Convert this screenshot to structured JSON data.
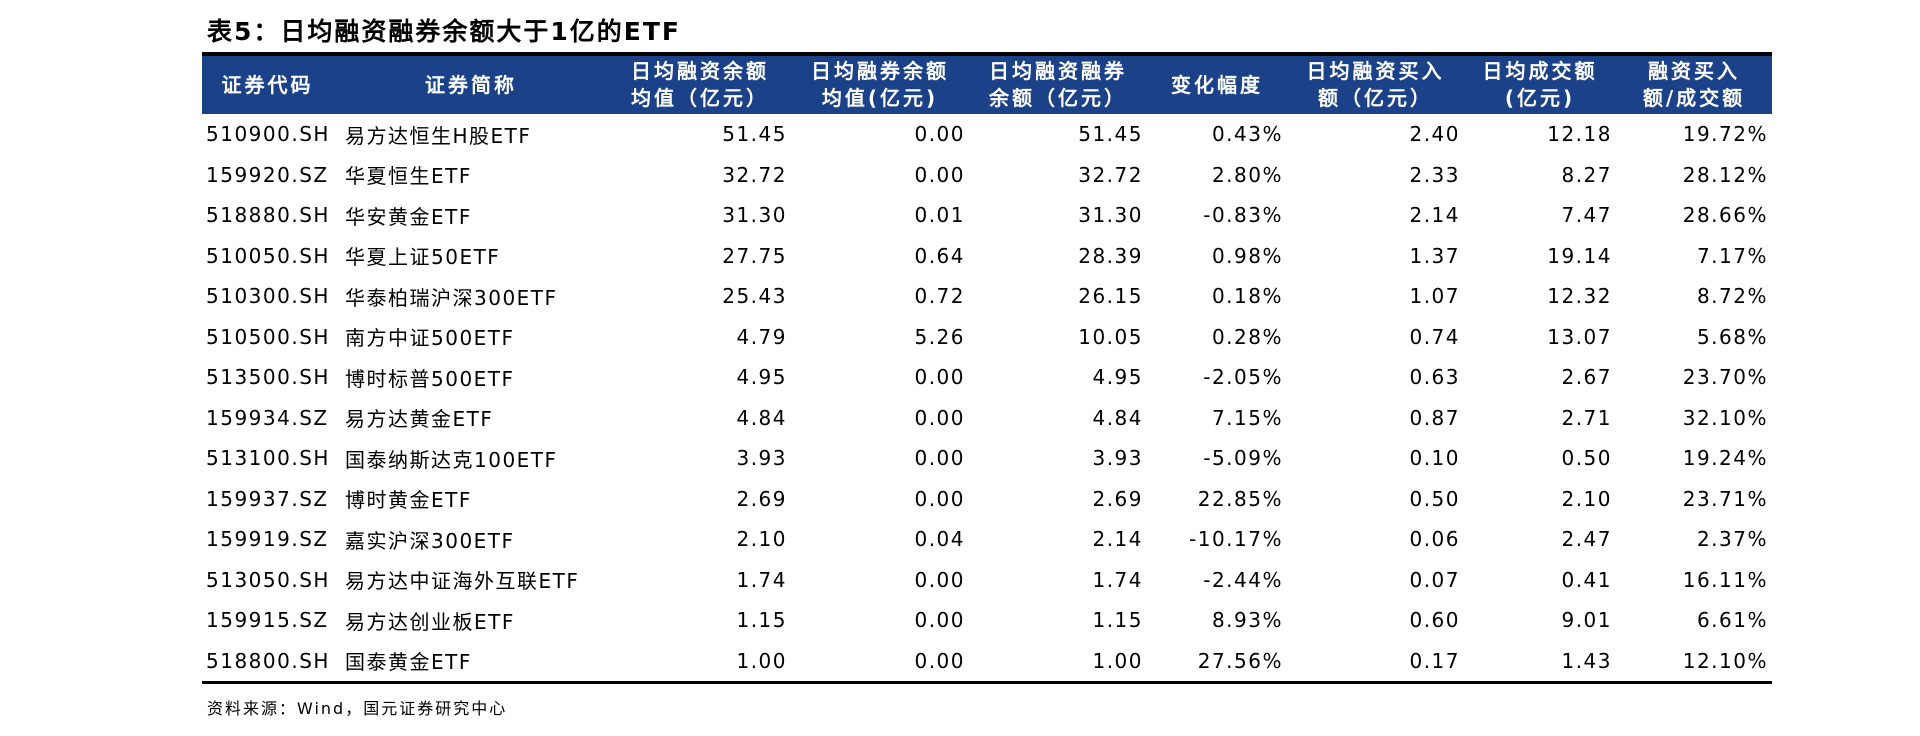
{
  "title": "表5：日均融资融券余额大于1亿的ETF",
  "headers": [
    "证券代码",
    "证券简称",
    "日均融资余额\n均值（亿元）",
    "日均融券余额\n均值(亿元)",
    "日均融资融券\n余额（亿元）",
    "变化幅度",
    "日均融资买入\n额（亿元）",
    "日均成交额\n(亿元)",
    "融资买入\n额/成交额"
  ],
  "rows": [
    [
      "510900.SH",
      "易方达恒生H股ETF",
      "51.45",
      "0.00",
      "51.45",
      "0.43%",
      "2.40",
      "12.18",
      "19.72%"
    ],
    [
      "159920.SZ",
      "华夏恒生ETF",
      "32.72",
      "0.00",
      "32.72",
      "2.80%",
      "2.33",
      "8.27",
      "28.12%"
    ],
    [
      "518880.SH",
      "华安黄金ETF",
      "31.30",
      "0.01",
      "31.30",
      "-0.83%",
      "2.14",
      "7.47",
      "28.66%"
    ],
    [
      "510050.SH",
      "华夏上证50ETF",
      "27.75",
      "0.64",
      "28.39",
      "0.98%",
      "1.37",
      "19.14",
      "7.17%"
    ],
    [
      "510300.SH",
      "华泰柏瑞沪深300ETF",
      "25.43",
      "0.72",
      "26.15",
      "0.18%",
      "1.07",
      "12.32",
      "8.72%"
    ],
    [
      "510500.SH",
      "南方中证500ETF",
      "4.79",
      "5.26",
      "10.05",
      "0.28%",
      "0.74",
      "13.07",
      "5.68%"
    ],
    [
      "513500.SH",
      "博时标普500ETF",
      "4.95",
      "0.00",
      "4.95",
      "-2.05%",
      "0.63",
      "2.67",
      "23.70%"
    ],
    [
      "159934.SZ",
      "易方达黄金ETF",
      "4.84",
      "0.00",
      "4.84",
      "7.15%",
      "0.87",
      "2.71",
      "32.10%"
    ],
    [
      "513100.SH",
      "国泰纳斯达克100ETF",
      "3.93",
      "0.00",
      "3.93",
      "-5.09%",
      "0.10",
      "0.50",
      "19.24%"
    ],
    [
      "159937.SZ",
      "博时黄金ETF",
      "2.69",
      "0.00",
      "2.69",
      "22.85%",
      "0.50",
      "2.10",
      "23.71%"
    ],
    [
      "159919.SZ",
      "嘉实沪深300ETF",
      "2.10",
      "0.04",
      "2.14",
      "-10.17%",
      "0.06",
      "2.47",
      "2.37%"
    ],
    [
      "513050.SH",
      "易方达中证海外互联ETF",
      "1.74",
      "0.00",
      "1.74",
      "-2.44%",
      "0.07",
      "0.41",
      "16.11%"
    ],
    [
      "159915.SZ",
      "易方达创业板ETF",
      "1.15",
      "0.00",
      "1.15",
      "8.93%",
      "0.60",
      "9.01",
      "6.61%"
    ],
    [
      "518800.SH",
      "国泰黄金ETF",
      "1.00",
      "0.00",
      "1.00",
      "27.56%",
      "0.17",
      "1.43",
      "12.10%"
    ]
  ],
  "source": "资料来源：Wind，国元证券研究中心",
  "colors": {
    "header_bg": "#1b4189",
    "header_text": "#ffffff",
    "rule": "#000000"
  }
}
